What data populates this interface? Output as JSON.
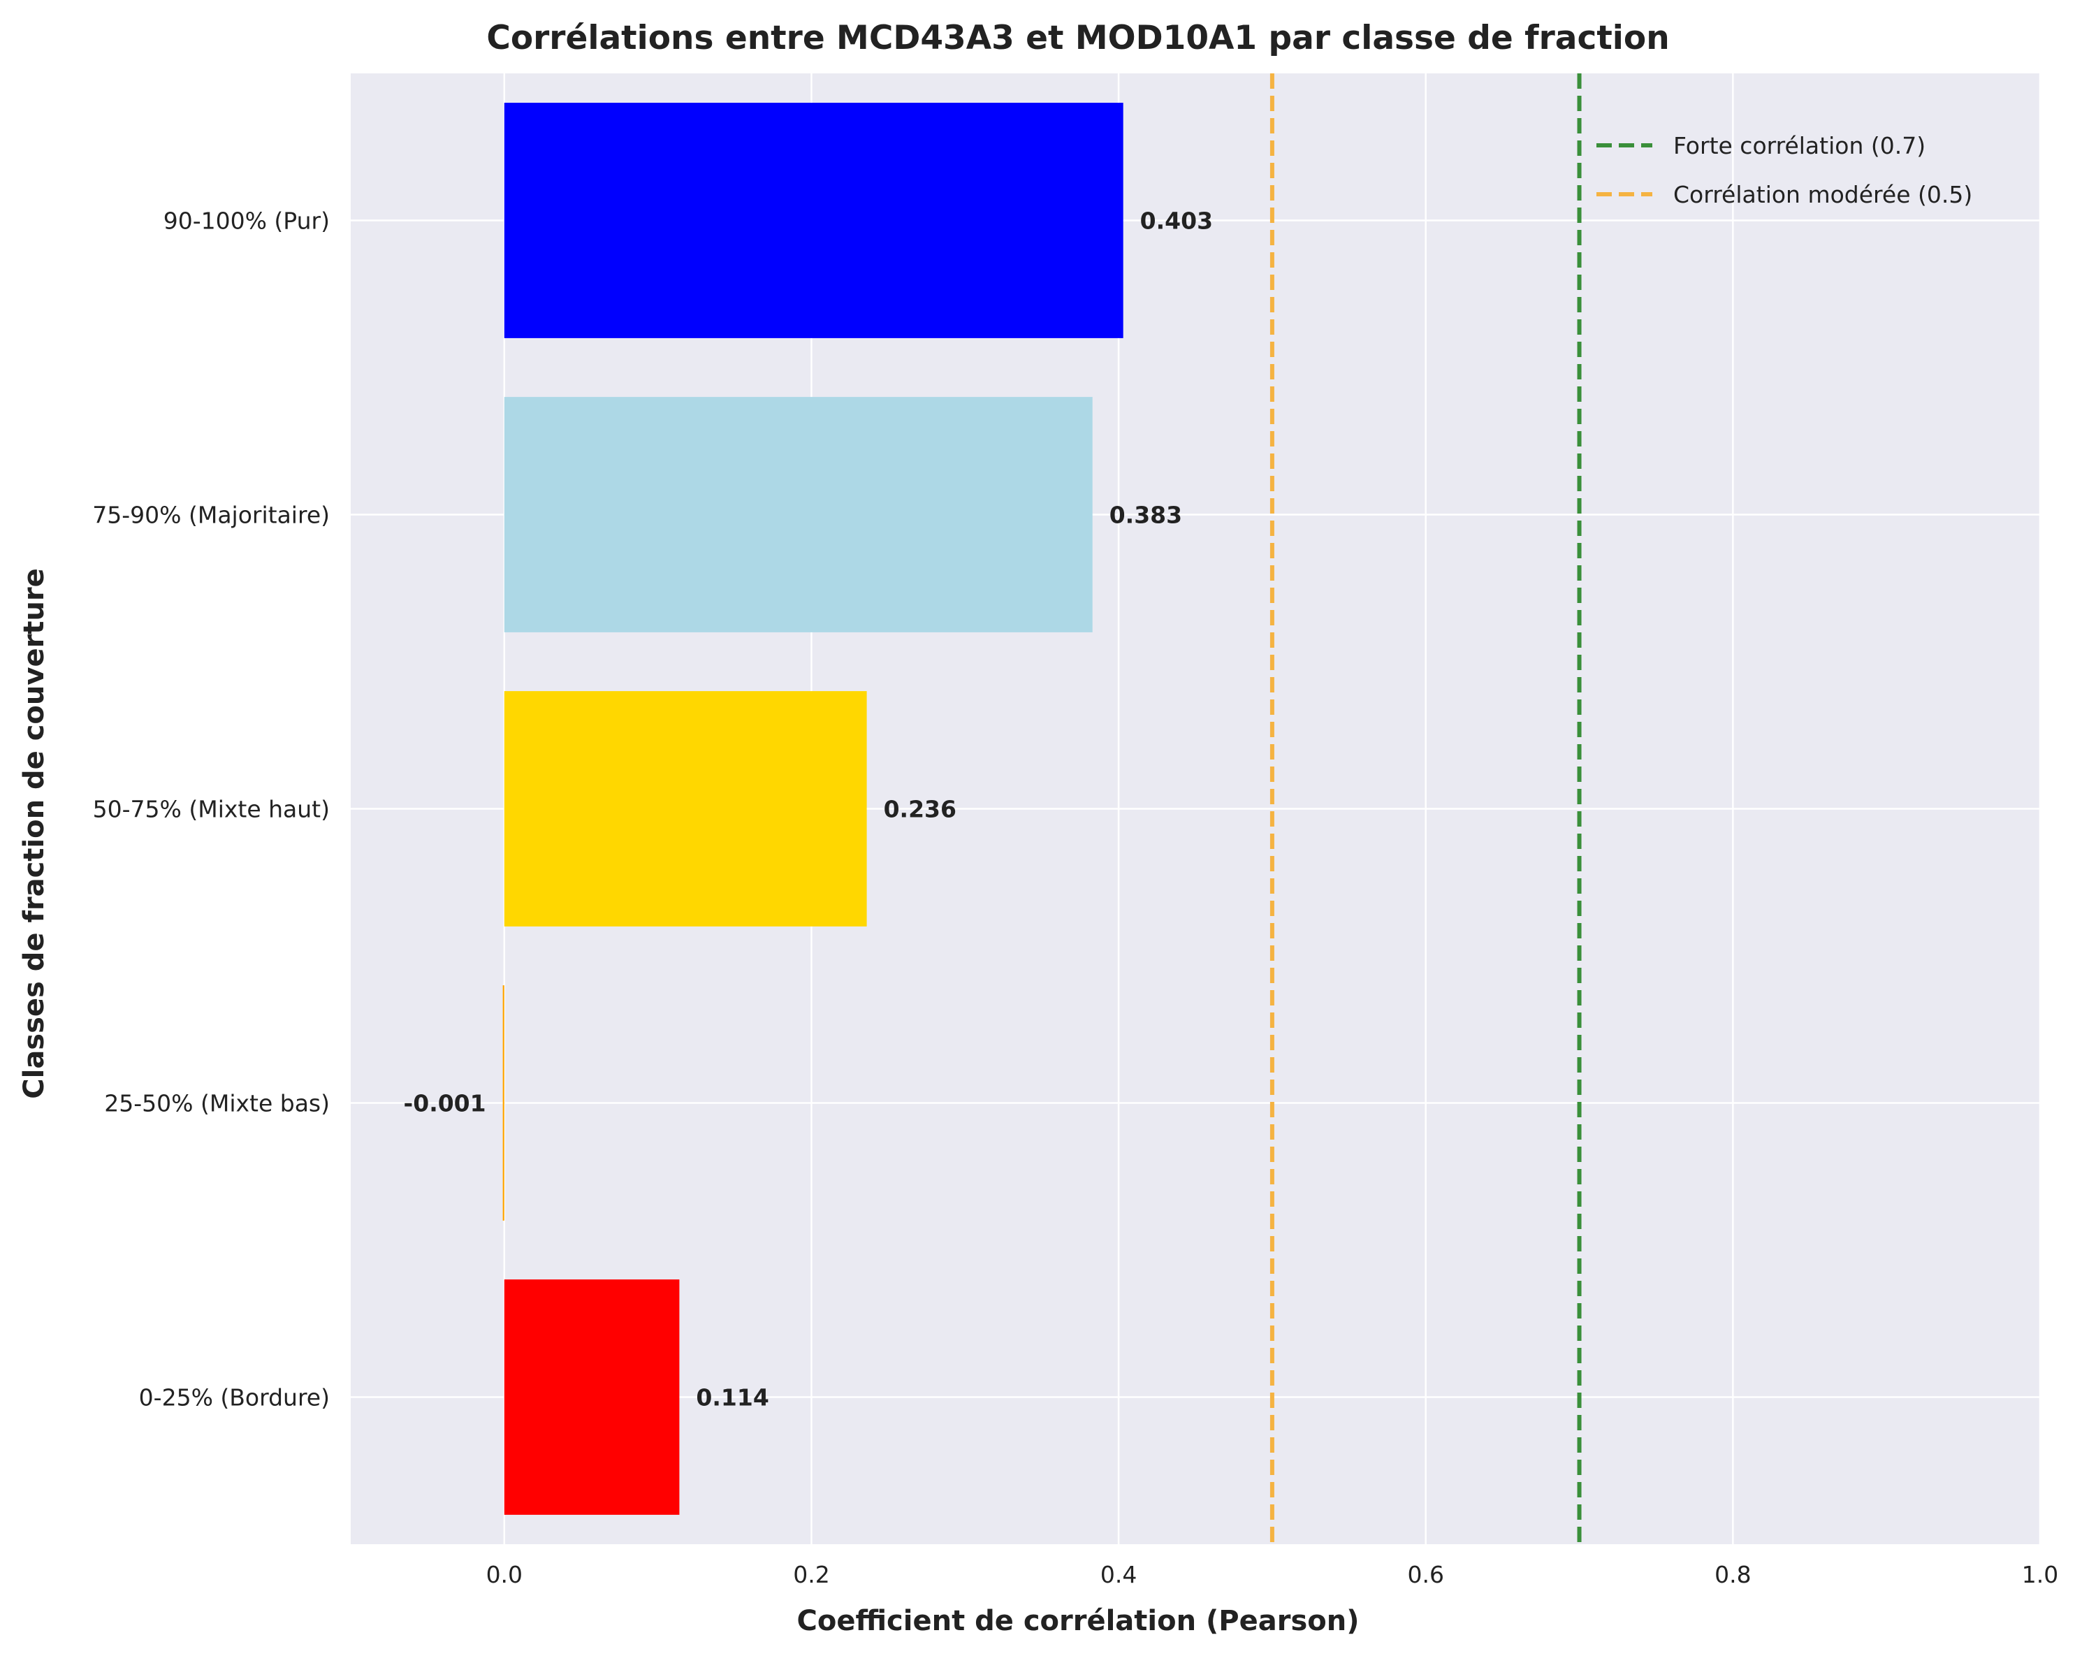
{
  "chart_data": {
    "type": "bar",
    "orientation": "horizontal",
    "title": "Corrélations entre MCD43A3 et MOD10A1 par classe de fraction",
    "xlabel": "Coefficient de corrélation (Pearson)",
    "ylabel": "Classes de fraction de couverture",
    "categories": [
      "0-25% (Bordure)",
      "25-50% (Mixte bas)",
      "50-75% (Mixte haut)",
      "75-90% (Majoritaire)",
      "90-100% (Pur)"
    ],
    "values": [
      0.114,
      -0.001,
      0.236,
      0.383,
      0.403
    ],
    "value_labels": [
      "0.114",
      "-0.001",
      "0.236",
      "0.383",
      "0.403"
    ],
    "bar_colors": [
      "#ff0000",
      "#ffa500",
      "#ffd700",
      "#add8e6",
      "#0000ff"
    ],
    "xlim": [
      -0.1,
      1.0
    ],
    "xticks": [
      0.0,
      0.2,
      0.4,
      0.6,
      0.8,
      1.0
    ],
    "xtick_labels": [
      "0.0",
      "0.2",
      "0.4",
      "0.6",
      "0.8",
      "1.0"
    ],
    "reference_lines": [
      {
        "label": "Forte corrélation (0.7)",
        "x": 0.7,
        "color": "#3a8f3a",
        "style": "dashed"
      },
      {
        "label": "Corrélation modérée (0.5)",
        "x": 0.5,
        "color": "#f5b342",
        "style": "dashed"
      }
    ],
    "legend_position": "top-right",
    "grid": true,
    "background": "#eaeaf2"
  }
}
